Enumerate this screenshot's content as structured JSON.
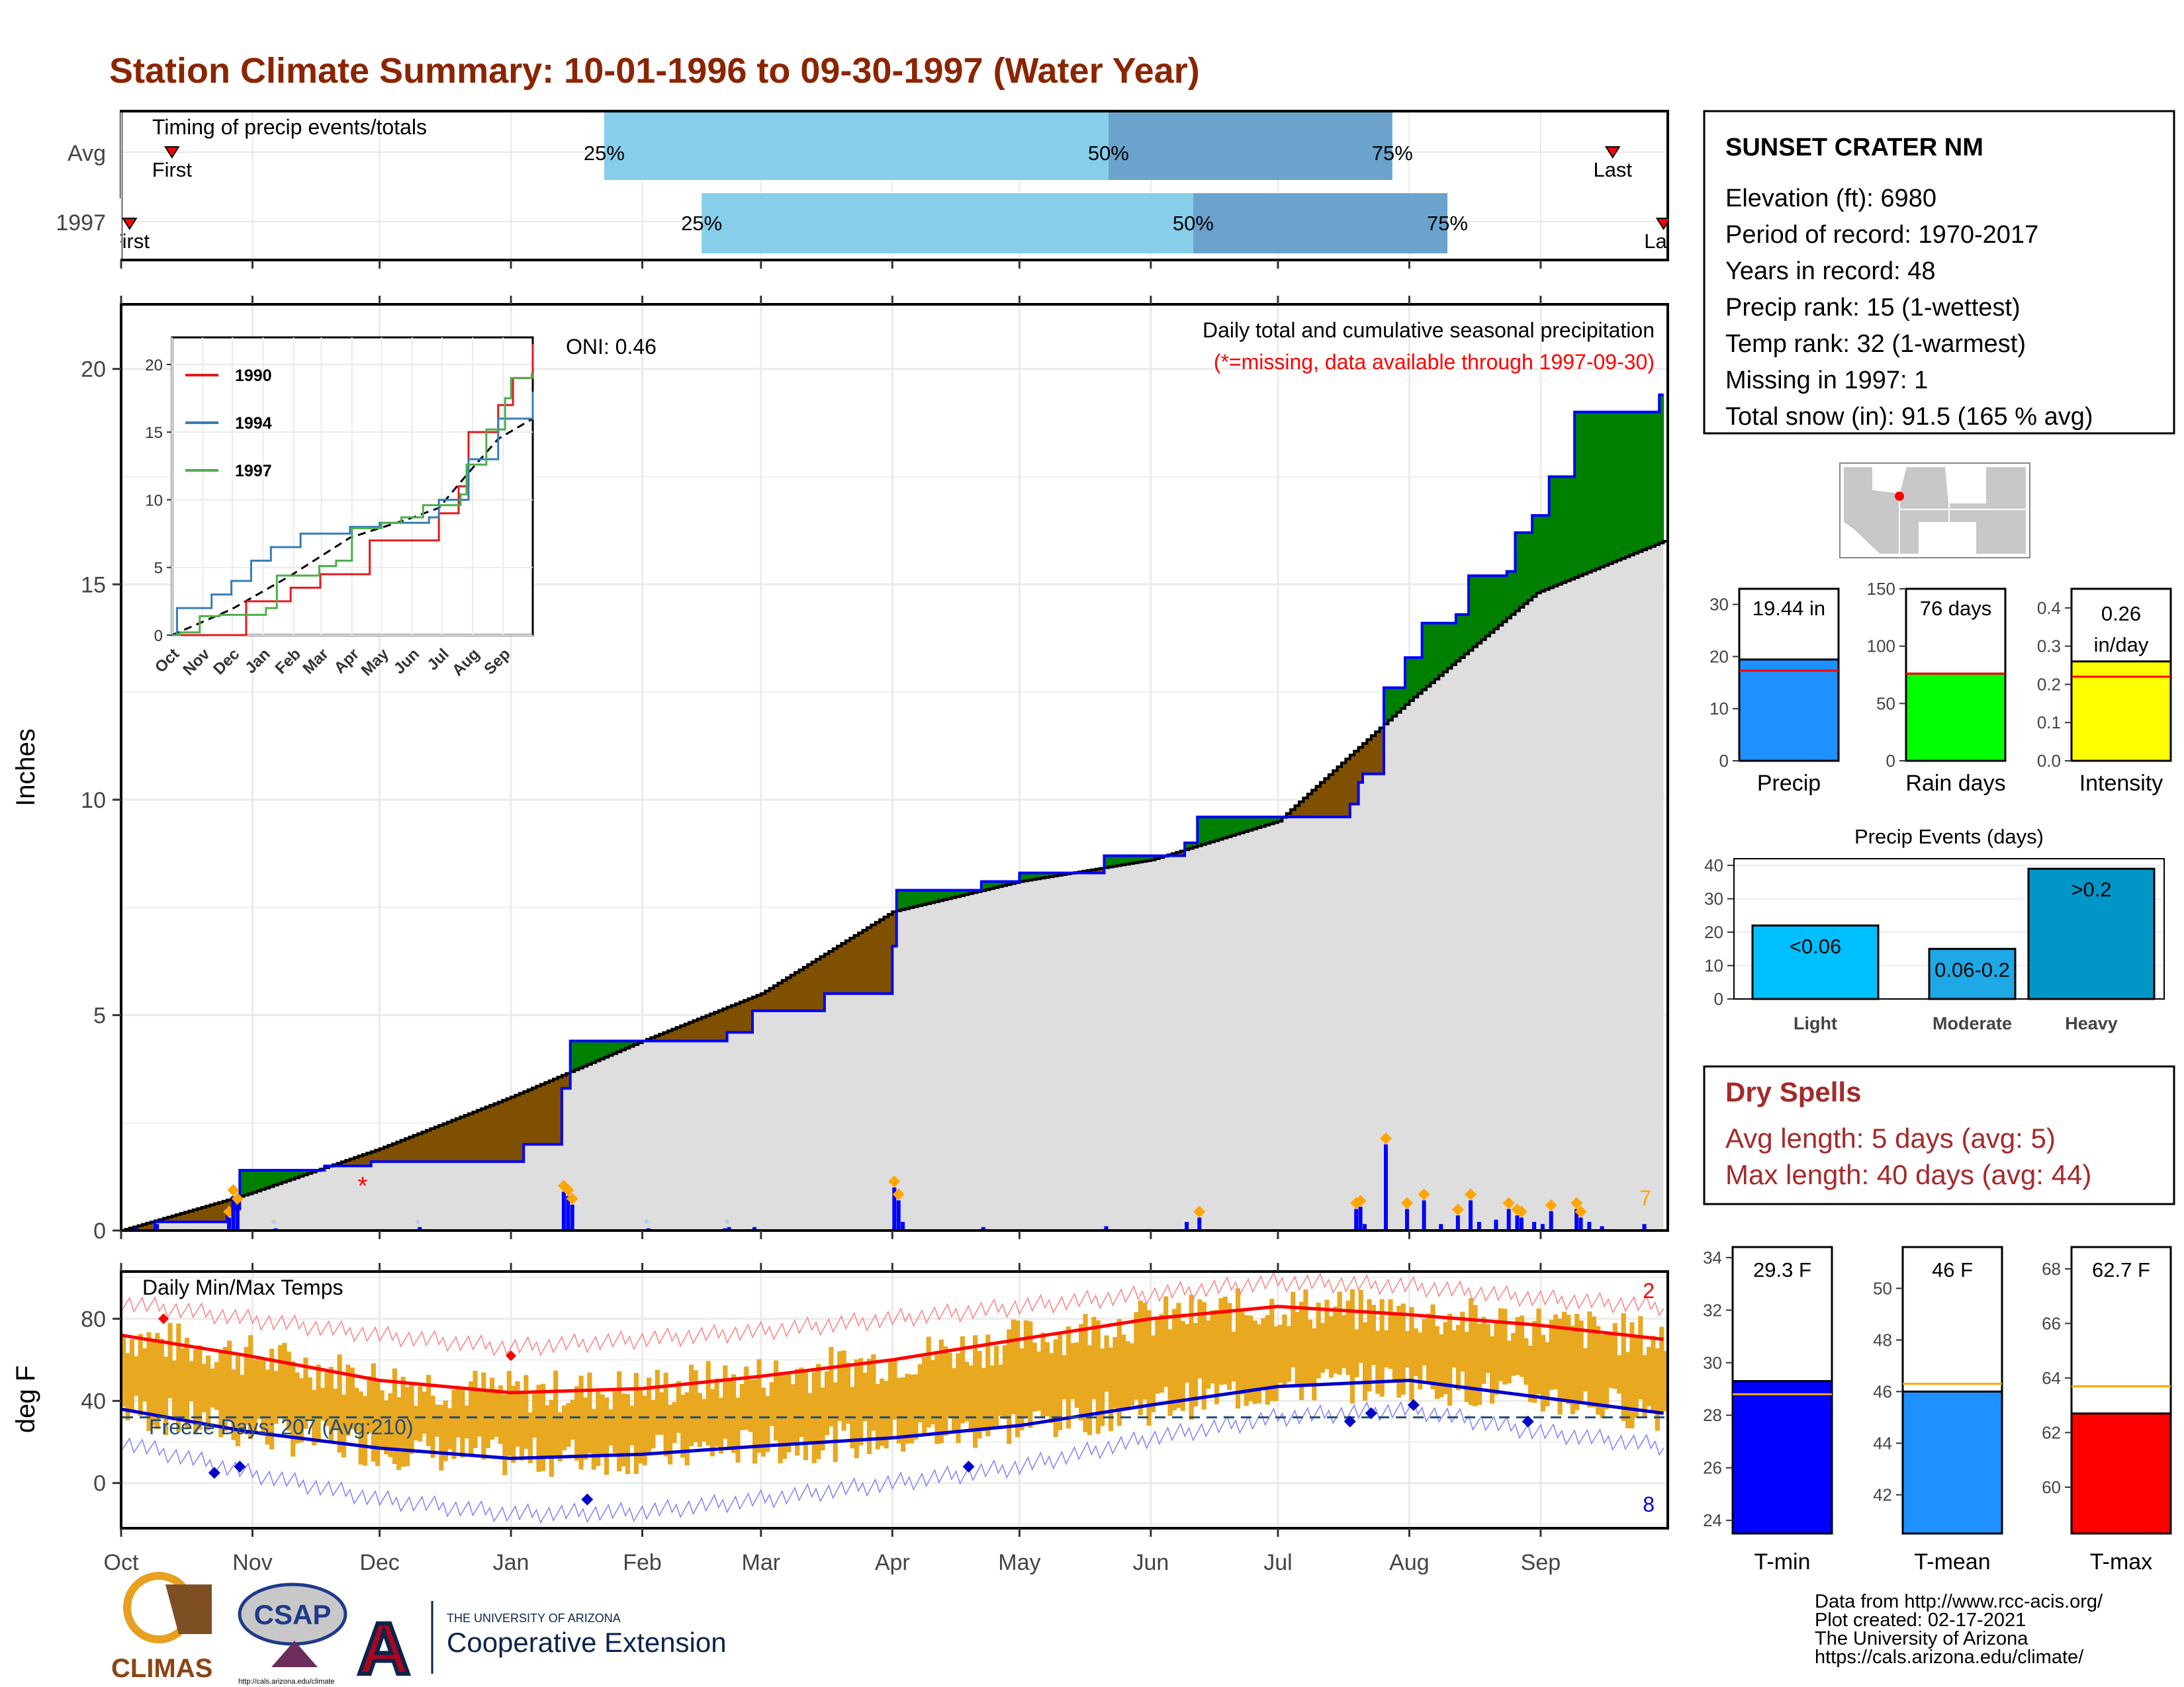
{
  "title": "Station Climate Summary: 10-01-1996 to 09-30-1997 (Water Year)",
  "colors": {
    "title": "#8B2500",
    "precip_green": "#008000",
    "precip_brown": "#7F5000",
    "normal_fill": "#DEDEDE",
    "line_blue": "#0000FF",
    "tmax_red": "#FF0000",
    "tmin_blue": "#0000CC",
    "temp_bar": "#E8A820",
    "bar_light": "#87CEEB",
    "bar_dark": "#6BA3CC"
  },
  "station": {
    "name": "SUNSET CRATER NM",
    "lines": [
      "Elevation (ft): 6980",
      "Period of record: 1970-2017",
      "Years in record: 48",
      "Precip rank: 15 (1-wettest)",
      "Temp rank: 32 (1-warmest)",
      "Missing in 1997: 1",
      "Total snow (in): 91.5 (165 % avg)"
    ]
  },
  "timing": {
    "label": "Timing of precip events/totals",
    "rows": [
      "Avg",
      "1997"
    ],
    "first_label": "First",
    "last_label": "Last",
    "pct_labels": [
      "25%",
      "50%",
      "75%"
    ],
    "avg": {
      "first_day": 12,
      "p25": 114,
      "p50": 233,
      "p75": 300,
      "last_day": 352
    },
    "year": {
      "first_day": 2,
      "p25": 137,
      "p50": 253,
      "p75": 313,
      "last_day": 364
    }
  },
  "months": [
    "Oct",
    "Nov",
    "Dec",
    "Jan",
    "Feb",
    "Mar",
    "Apr",
    "May",
    "Jun",
    "Jul",
    "Aug",
    "Sep"
  ],
  "main": {
    "ylabel": "Inches",
    "yticks": [
      0,
      5,
      10,
      15,
      20
    ],
    "ymax": 21.5,
    "header": "Daily total and cumulative seasonal precipitation",
    "subheader": "(*=missing, data available through 1997-09-30)",
    "oni": "ONI: 0.46",
    "corner_count": "7",
    "normal_curve": [
      [
        0,
        0
      ],
      [
        30,
        0.85
      ],
      [
        61,
        1.9
      ],
      [
        92,
        3.1
      ],
      [
        123,
        4.4
      ],
      [
        151,
        5.5
      ],
      [
        182,
        7.4
      ],
      [
        212,
        8.1
      ],
      [
        243,
        8.6
      ],
      [
        273,
        9.5
      ],
      [
        304,
        12.3
      ],
      [
        334,
        14.8
      ],
      [
        364,
        16
      ]
    ],
    "observed_steps": [
      [
        0,
        0
      ],
      [
        8,
        0.2
      ],
      [
        25,
        0.5
      ],
      [
        28,
        1.4
      ],
      [
        48,
        1.5
      ],
      [
        59,
        1.6
      ],
      [
        95,
        2.0
      ],
      [
        104,
        3.3
      ],
      [
        106,
        4.4
      ],
      [
        143,
        4.6
      ],
      [
        149,
        5.1
      ],
      [
        166,
        5.5
      ],
      [
        182,
        6.6
      ],
      [
        183,
        7.9
      ],
      [
        203,
        8.1
      ],
      [
        212,
        8.3
      ],
      [
        232,
        8.7
      ],
      [
        251,
        9.0
      ],
      [
        254,
        9.6
      ],
      [
        290,
        9.9
      ],
      [
        292,
        10.4
      ],
      [
        293,
        10.6
      ],
      [
        298,
        12.6
      ],
      [
        303,
        13.3
      ],
      [
        307,
        14.1
      ],
      [
        315,
        14.3
      ],
      [
        318,
        15.2
      ],
      [
        327,
        15.3
      ],
      [
        329,
        16.2
      ],
      [
        333,
        16.6
      ],
      [
        337,
        17.5
      ],
      [
        343,
        19.0
      ],
      [
        363,
        19.4
      ],
      [
        364,
        19.4
      ]
    ],
    "daily_bars": [
      [
        3,
        0.08
      ],
      [
        8,
        0.15
      ],
      [
        25,
        0.3
      ],
      [
        26,
        0.8
      ],
      [
        27,
        0.6
      ],
      [
        36,
        0.05
      ],
      [
        70,
        0.08
      ],
      [
        104,
        0.9
      ],
      [
        105,
        0.8
      ],
      [
        106,
        0.6
      ],
      [
        124,
        0.05
      ],
      [
        142,
        0.05
      ],
      [
        143,
        0.08
      ],
      [
        149,
        0.08
      ],
      [
        182,
        1.0
      ],
      [
        183,
        0.7
      ],
      [
        184,
        0.2
      ],
      [
        203,
        0.08
      ],
      [
        232,
        0.1
      ],
      [
        251,
        0.2
      ],
      [
        254,
        0.3
      ],
      [
        291,
        0.5
      ],
      [
        292,
        0.55
      ],
      [
        293,
        0.15
      ],
      [
        298,
        2.0
      ],
      [
        303,
        0.5
      ],
      [
        307,
        0.7
      ],
      [
        311,
        0.15
      ],
      [
        315,
        0.35
      ],
      [
        318,
        0.7
      ],
      [
        320,
        0.2
      ],
      [
        324,
        0.25
      ],
      [
        327,
        0.5
      ],
      [
        329,
        0.35
      ],
      [
        330,
        0.3
      ],
      [
        333,
        0.2
      ],
      [
        335,
        0.15
      ],
      [
        337,
        0.45
      ],
      [
        343,
        0.5
      ],
      [
        344,
        0.3
      ],
      [
        346,
        0.2
      ],
      [
        349,
        0.1
      ],
      [
        359,
        0.15
      ]
    ],
    "missing_marker_day": 57,
    "missing_marker_value": 1.0,
    "inset": {
      "yticks": [
        0,
        5,
        10,
        15,
        20
      ],
      "xticks": [
        "Oct",
        "Nov",
        "Dec",
        "Jan",
        "Feb",
        "Mar",
        "Apr",
        "May",
        "Jun",
        "Jul",
        "Aug",
        "Sep"
      ],
      "series": [
        {
          "name": "1990",
          "color": "#E41A1C",
          "values": [
            [
              0,
              0
            ],
            [
              70,
              0
            ],
            [
              75,
              2.5
            ],
            [
              120,
              3.5
            ],
            [
              150,
              4.5
            ],
            [
              200,
              7
            ],
            [
              270,
              9
            ],
            [
              290,
              11
            ],
            [
              300,
              15
            ],
            [
              330,
              17
            ],
            [
              345,
              19
            ],
            [
              365,
              21.5
            ]
          ]
        },
        {
          "name": "1994",
          "color": "#377EB8",
          "values": [
            [
              0,
              0
            ],
            [
              5,
              2
            ],
            [
              40,
              3
            ],
            [
              60,
              4
            ],
            [
              80,
              5.5
            ],
            [
              100,
              6.5
            ],
            [
              130,
              7.5
            ],
            [
              180,
              8
            ],
            [
              210,
              8.3
            ],
            [
              260,
              8.7
            ],
            [
              270,
              10
            ],
            [
              300,
              13
            ],
            [
              330,
              16
            ],
            [
              365,
              18
            ]
          ]
        },
        {
          "name": "1997",
          "color": "#4DAF4A",
          "values": [
            [
              0,
              0
            ],
            [
              8,
              0.2
            ],
            [
              28,
              1.4
            ],
            [
              48,
              1.5
            ],
            [
              95,
              2.0
            ],
            [
              106,
              4.4
            ],
            [
              149,
              5.1
            ],
            [
              166,
              5.5
            ],
            [
              182,
              7.9
            ],
            [
              212,
              8.3
            ],
            [
              232,
              8.7
            ],
            [
              254,
              9.6
            ],
            [
              292,
              10.4
            ],
            [
              298,
              12.6
            ],
            [
              318,
              15.2
            ],
            [
              337,
              17.5
            ],
            [
              343,
              19.0
            ],
            [
              364,
              19.4
            ]
          ]
        }
      ],
      "avg_curve": [
        [
          0,
          0
        ],
        [
          60,
          1.9
        ],
        [
          120,
          4.4
        ],
        [
          180,
          7.2
        ],
        [
          240,
          8.6
        ],
        [
          270,
          9.4
        ],
        [
          300,
          12
        ],
        [
          330,
          14.5
        ],
        [
          365,
          16
        ]
      ]
    }
  },
  "temps": {
    "label": "Daily Min/Max Temps",
    "ylabel": "deg F",
    "yticks": [
      0,
      40,
      80
    ],
    "ymin": -22,
    "ymax": 103,
    "freeze_line": 32,
    "freeze_label": "Freeze Days: 207 (Avg:210)",
    "count_top": "2",
    "count_bottom": "8",
    "xticks": [
      "Oct",
      "Nov",
      "Dec",
      "Jan",
      "Feb",
      "Mar",
      "Apr",
      "May",
      "Jun",
      "Jul",
      "Aug",
      "Sep"
    ],
    "norm_max": [
      [
        0,
        72
      ],
      [
        30,
        62
      ],
      [
        61,
        50
      ],
      [
        92,
        44
      ],
      [
        123,
        46
      ],
      [
        151,
        52
      ],
      [
        182,
        60
      ],
      [
        212,
        70
      ],
      [
        243,
        80
      ],
      [
        273,
        86
      ],
      [
        304,
        82
      ],
      [
        334,
        77
      ],
      [
        364,
        70
      ]
    ],
    "norm_min": [
      [
        0,
        36
      ],
      [
        30,
        25
      ],
      [
        61,
        17
      ],
      [
        92,
        12
      ],
      [
        123,
        14
      ],
      [
        151,
        18
      ],
      [
        182,
        22
      ],
      [
        212,
        28
      ],
      [
        243,
        38
      ],
      [
        273,
        47
      ],
      [
        304,
        50
      ],
      [
        334,
        42
      ],
      [
        364,
        34
      ]
    ],
    "rec_max": [
      [
        0,
        88
      ],
      [
        30,
        80
      ],
      [
        61,
        72
      ],
      [
        92,
        66
      ],
      [
        123,
        70
      ],
      [
        151,
        74
      ],
      [
        182,
        80
      ],
      [
        212,
        86
      ],
      [
        243,
        92
      ],
      [
        273,
        98
      ],
      [
        304,
        96
      ],
      [
        334,
        90
      ],
      [
        364,
        86
      ]
    ],
    "rec_min": [
      [
        0,
        20
      ],
      [
        30,
        5
      ],
      [
        61,
        -8
      ],
      [
        92,
        -15
      ],
      [
        123,
        -14
      ],
      [
        151,
        -8
      ],
      [
        182,
        0
      ],
      [
        212,
        8
      ],
      [
        243,
        22
      ],
      [
        273,
        32
      ],
      [
        304,
        36
      ],
      [
        334,
        25
      ],
      [
        364,
        18
      ]
    ]
  },
  "bars_top": [
    {
      "name": "Precip",
      "value": 19.44,
      "label": "19.44 in",
      "avg": 17.3,
      "ymax": 33,
      "yticks": [
        0,
        10,
        20,
        30
      ],
      "color": "#1E90FF"
    },
    {
      "name": "Rain days",
      "value": 76,
      "label": "76 days",
      "avg": 76,
      "ymax": 150,
      "yticks": [
        0,
        50,
        100,
        150
      ],
      "color": "#00FF00"
    },
    {
      "name": "Intensity",
      "value": 0.26,
      "label": "0.26 in/day",
      "label_line1": "0.26",
      "label_line2": "in/day",
      "avg": 0.22,
      "ymax": 0.45,
      "yticks": [
        0.0,
        0.1,
        0.2,
        0.3,
        0.4
      ],
      "color": "#FFFF00"
    }
  ],
  "events": {
    "title": "Precip Events (days)",
    "yticks": [
      0,
      10,
      20,
      30,
      40
    ],
    "ymax": 42,
    "bars": [
      {
        "name": "Light",
        "label": "<0.06",
        "value": 22,
        "color": "#00BFFF"
      },
      {
        "name": "Moderate",
        "label": "0.06-0.2",
        "value": 15,
        "color": "#1EA8E6"
      },
      {
        "name": "Heavy",
        "label": ">0.2",
        "value": 39,
        "color": "#0096C8"
      }
    ]
  },
  "dry": {
    "title": "Dry Spells",
    "lines": [
      "Avg length: 5 days (avg: 5)",
      "Max length: 40 days (avg: 44)"
    ],
    "color": "#A52A2A"
  },
  "temp_bars": [
    {
      "name": "T-min",
      "value": 29.3,
      "label": "29.3 F",
      "avg": 28.8,
      "ymin": 23.5,
      "ymax": 34.4,
      "yticks": [
        24,
        26,
        28,
        30,
        32,
        34
      ],
      "color": "#0000FF"
    },
    {
      "name": "T-mean",
      "value": 46.0,
      "label": "46 F",
      "avg": 46.3,
      "ymin": 40.5,
      "ymax": 51.6,
      "yticks": [
        42,
        44,
        46,
        48,
        50
      ],
      "color": "#1E90FF"
    },
    {
      "name": "T-max",
      "value": 62.7,
      "label": "62.7 F",
      "avg": 63.7,
      "ymin": 58.3,
      "ymax": 68.8,
      "yticks": [
        60,
        62,
        64,
        66,
        68
      ],
      "color": "#FF0000"
    }
  ],
  "footer": [
    "Data from http://www.rcc-acis.org/",
    "Plot created: 02-17-2021",
    "The University of Arizona",
    "https://cals.arizona.edu/climate/"
  ],
  "logos": {
    "climas": "CLIMAS",
    "csap": "CSAP",
    "csap_url": "http://cals.arizona.edu/climate",
    "ua_small": "THE UNIVERSITY OF ARIZONA",
    "ua_big": "Cooperative Extension",
    "ua_letter": "A"
  }
}
